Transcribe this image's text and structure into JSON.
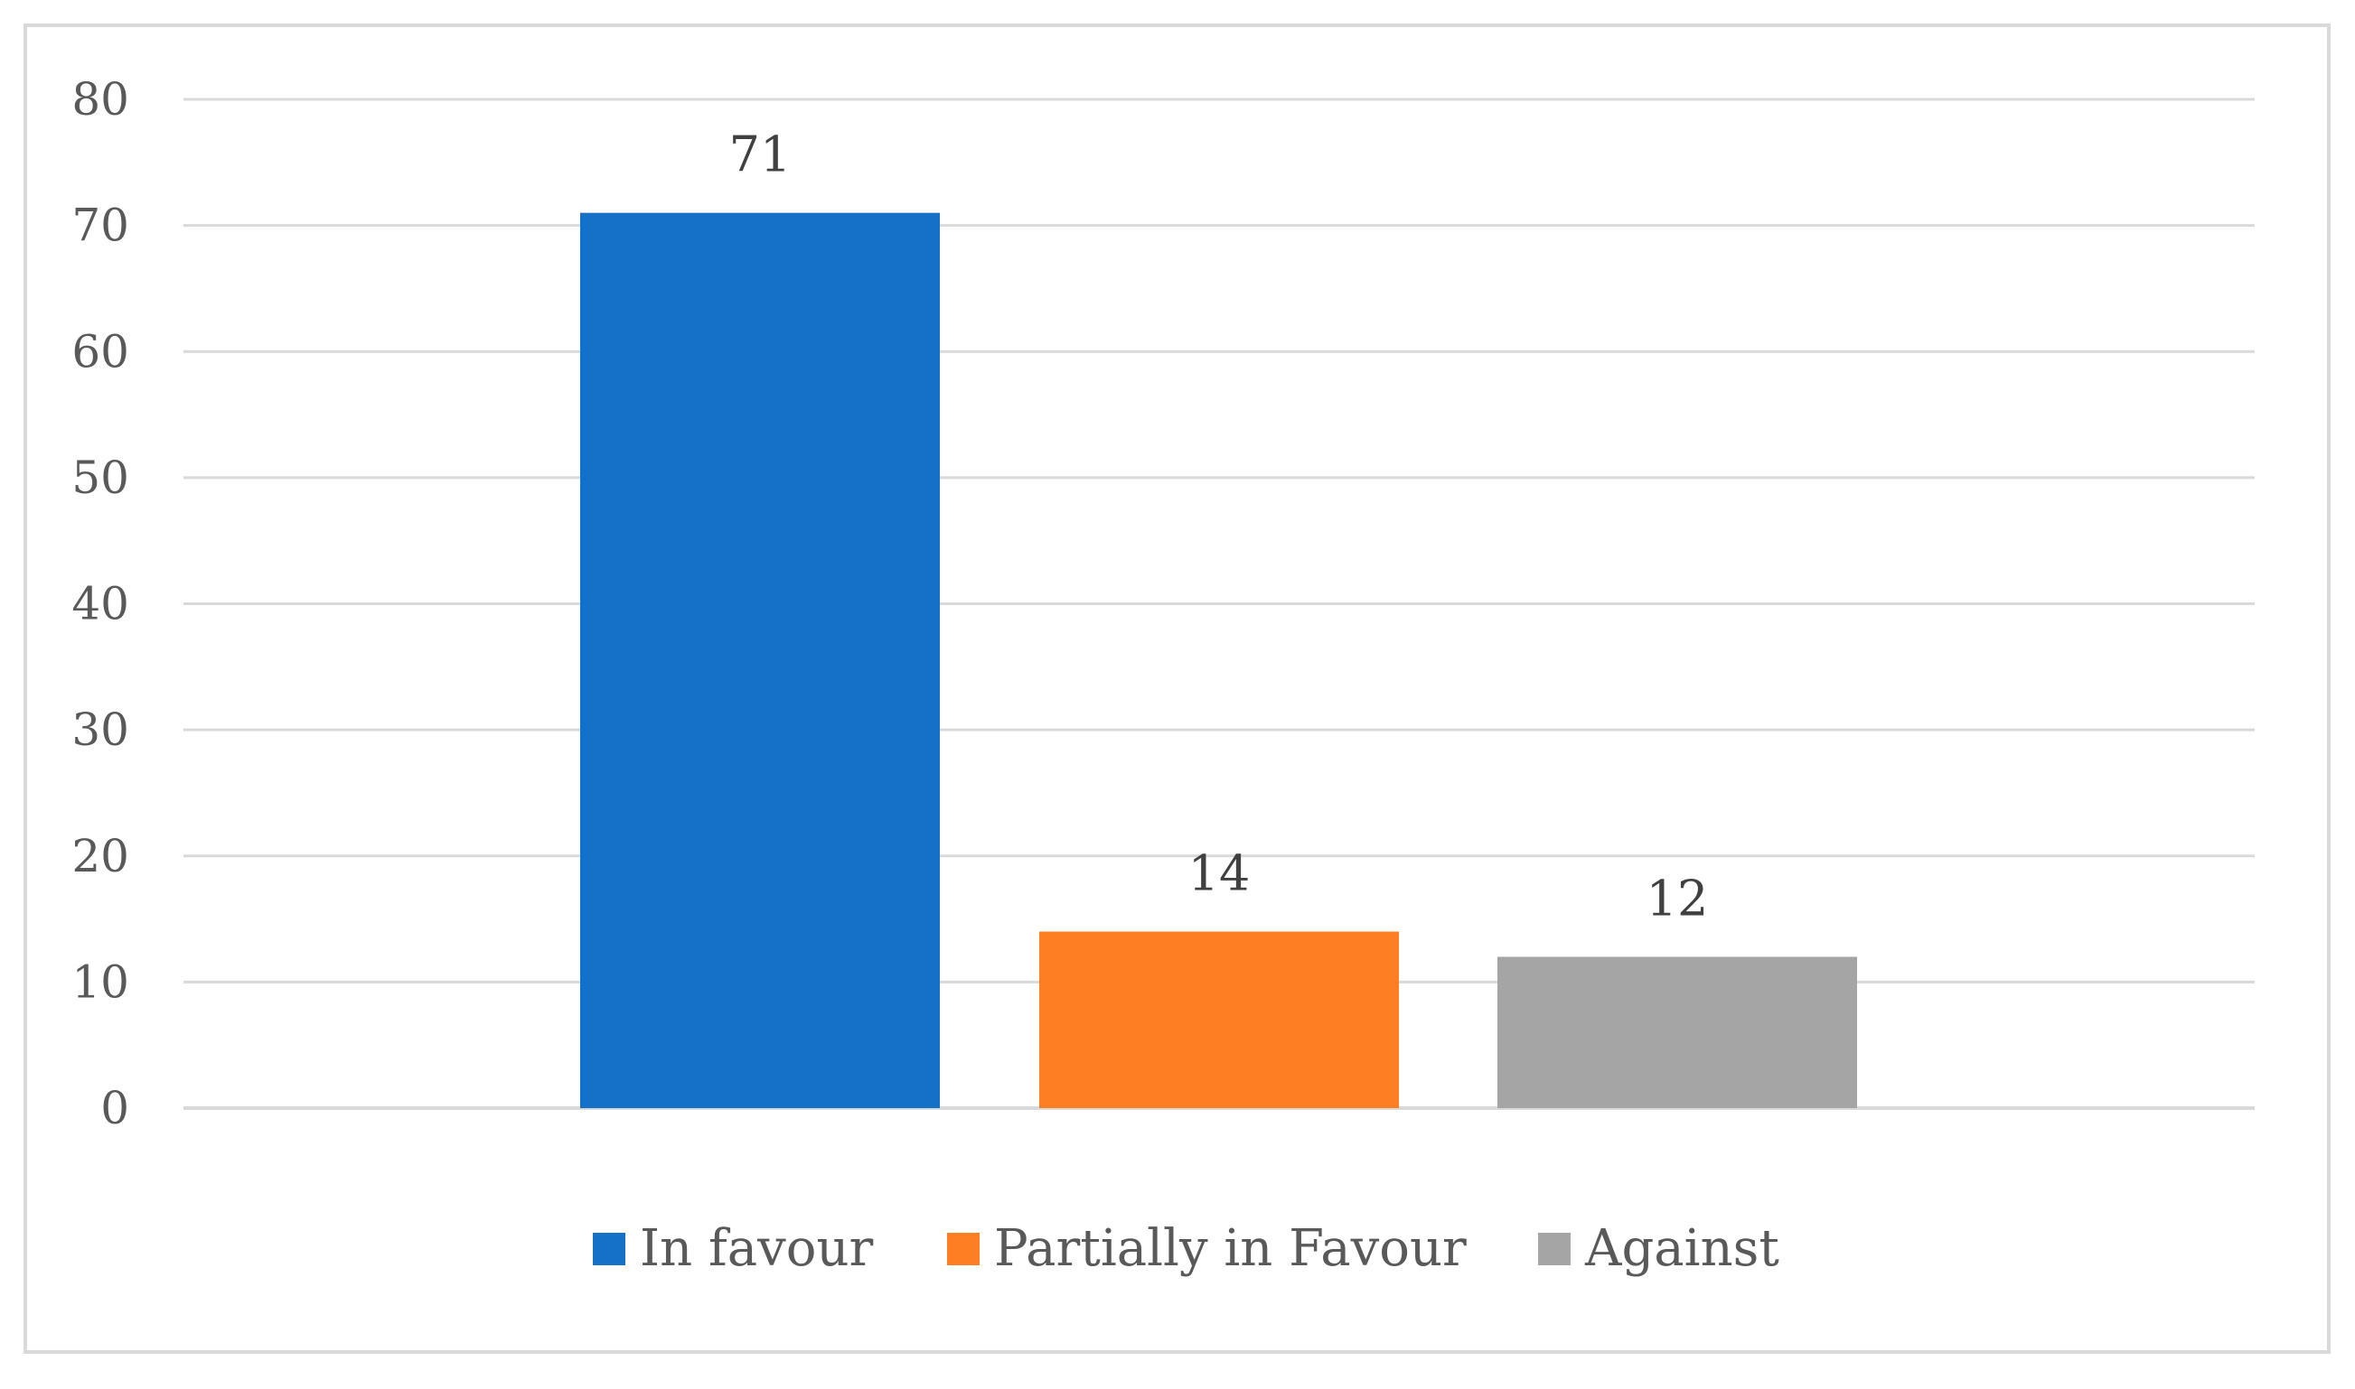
{
  "chart_data": {
    "type": "bar",
    "title": "",
    "xlabel": "",
    "ylabel": "",
    "ylim": [
      0,
      80
    ],
    "yticks": [
      0,
      10,
      20,
      30,
      40,
      50,
      60,
      70,
      80
    ],
    "grid": true,
    "legend_position": "bottom",
    "series": [
      {
        "name": "In favour",
        "values": [
          71
        ],
        "color": "#1570c8"
      },
      {
        "name": "Partially in Favour",
        "values": [
          14
        ],
        "color": "#fd7f22"
      },
      {
        "name": "Against",
        "values": [
          12
        ],
        "color": "#a5a5a5"
      }
    ],
    "data_labels": [
      "71",
      "14",
      "12"
    ]
  }
}
